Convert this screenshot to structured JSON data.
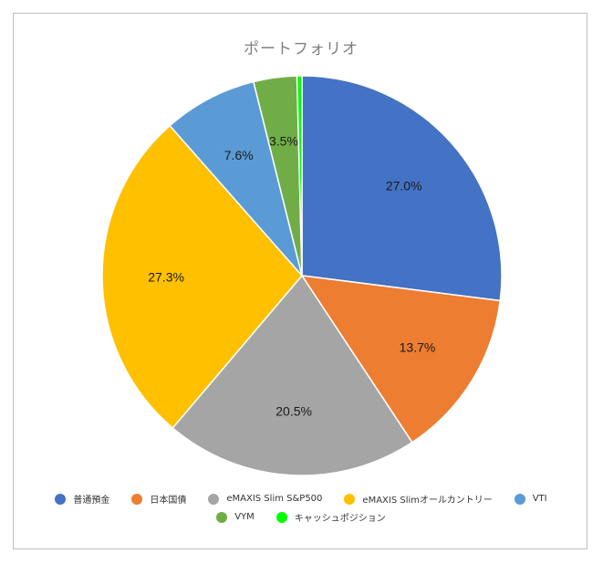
{
  "chart_data": {
    "type": "pie",
    "title": "ポートフォリオ",
    "categories": [
      "普通預金",
      "日本国債",
      "eMAXIS Slim S&P500",
      "eMAXIS Slimオールカントリー",
      "VTI",
      "VYM",
      "キャッシュポジション"
    ],
    "values": [
      27.0,
      13.7,
      20.5,
      27.3,
      7.6,
      3.5,
      0.4
    ],
    "data_labels": [
      "27.0%",
      "13.7%",
      "20.5%",
      "27.3%",
      "7.6%",
      "3.5%",
      ""
    ],
    "colors": [
      "#4472C4",
      "#ED7D31",
      "#A5A5A5",
      "#FFC000",
      "#5B9BD5",
      "#70AD47",
      "#00FF00"
    ],
    "legend_position": "bottom"
  }
}
